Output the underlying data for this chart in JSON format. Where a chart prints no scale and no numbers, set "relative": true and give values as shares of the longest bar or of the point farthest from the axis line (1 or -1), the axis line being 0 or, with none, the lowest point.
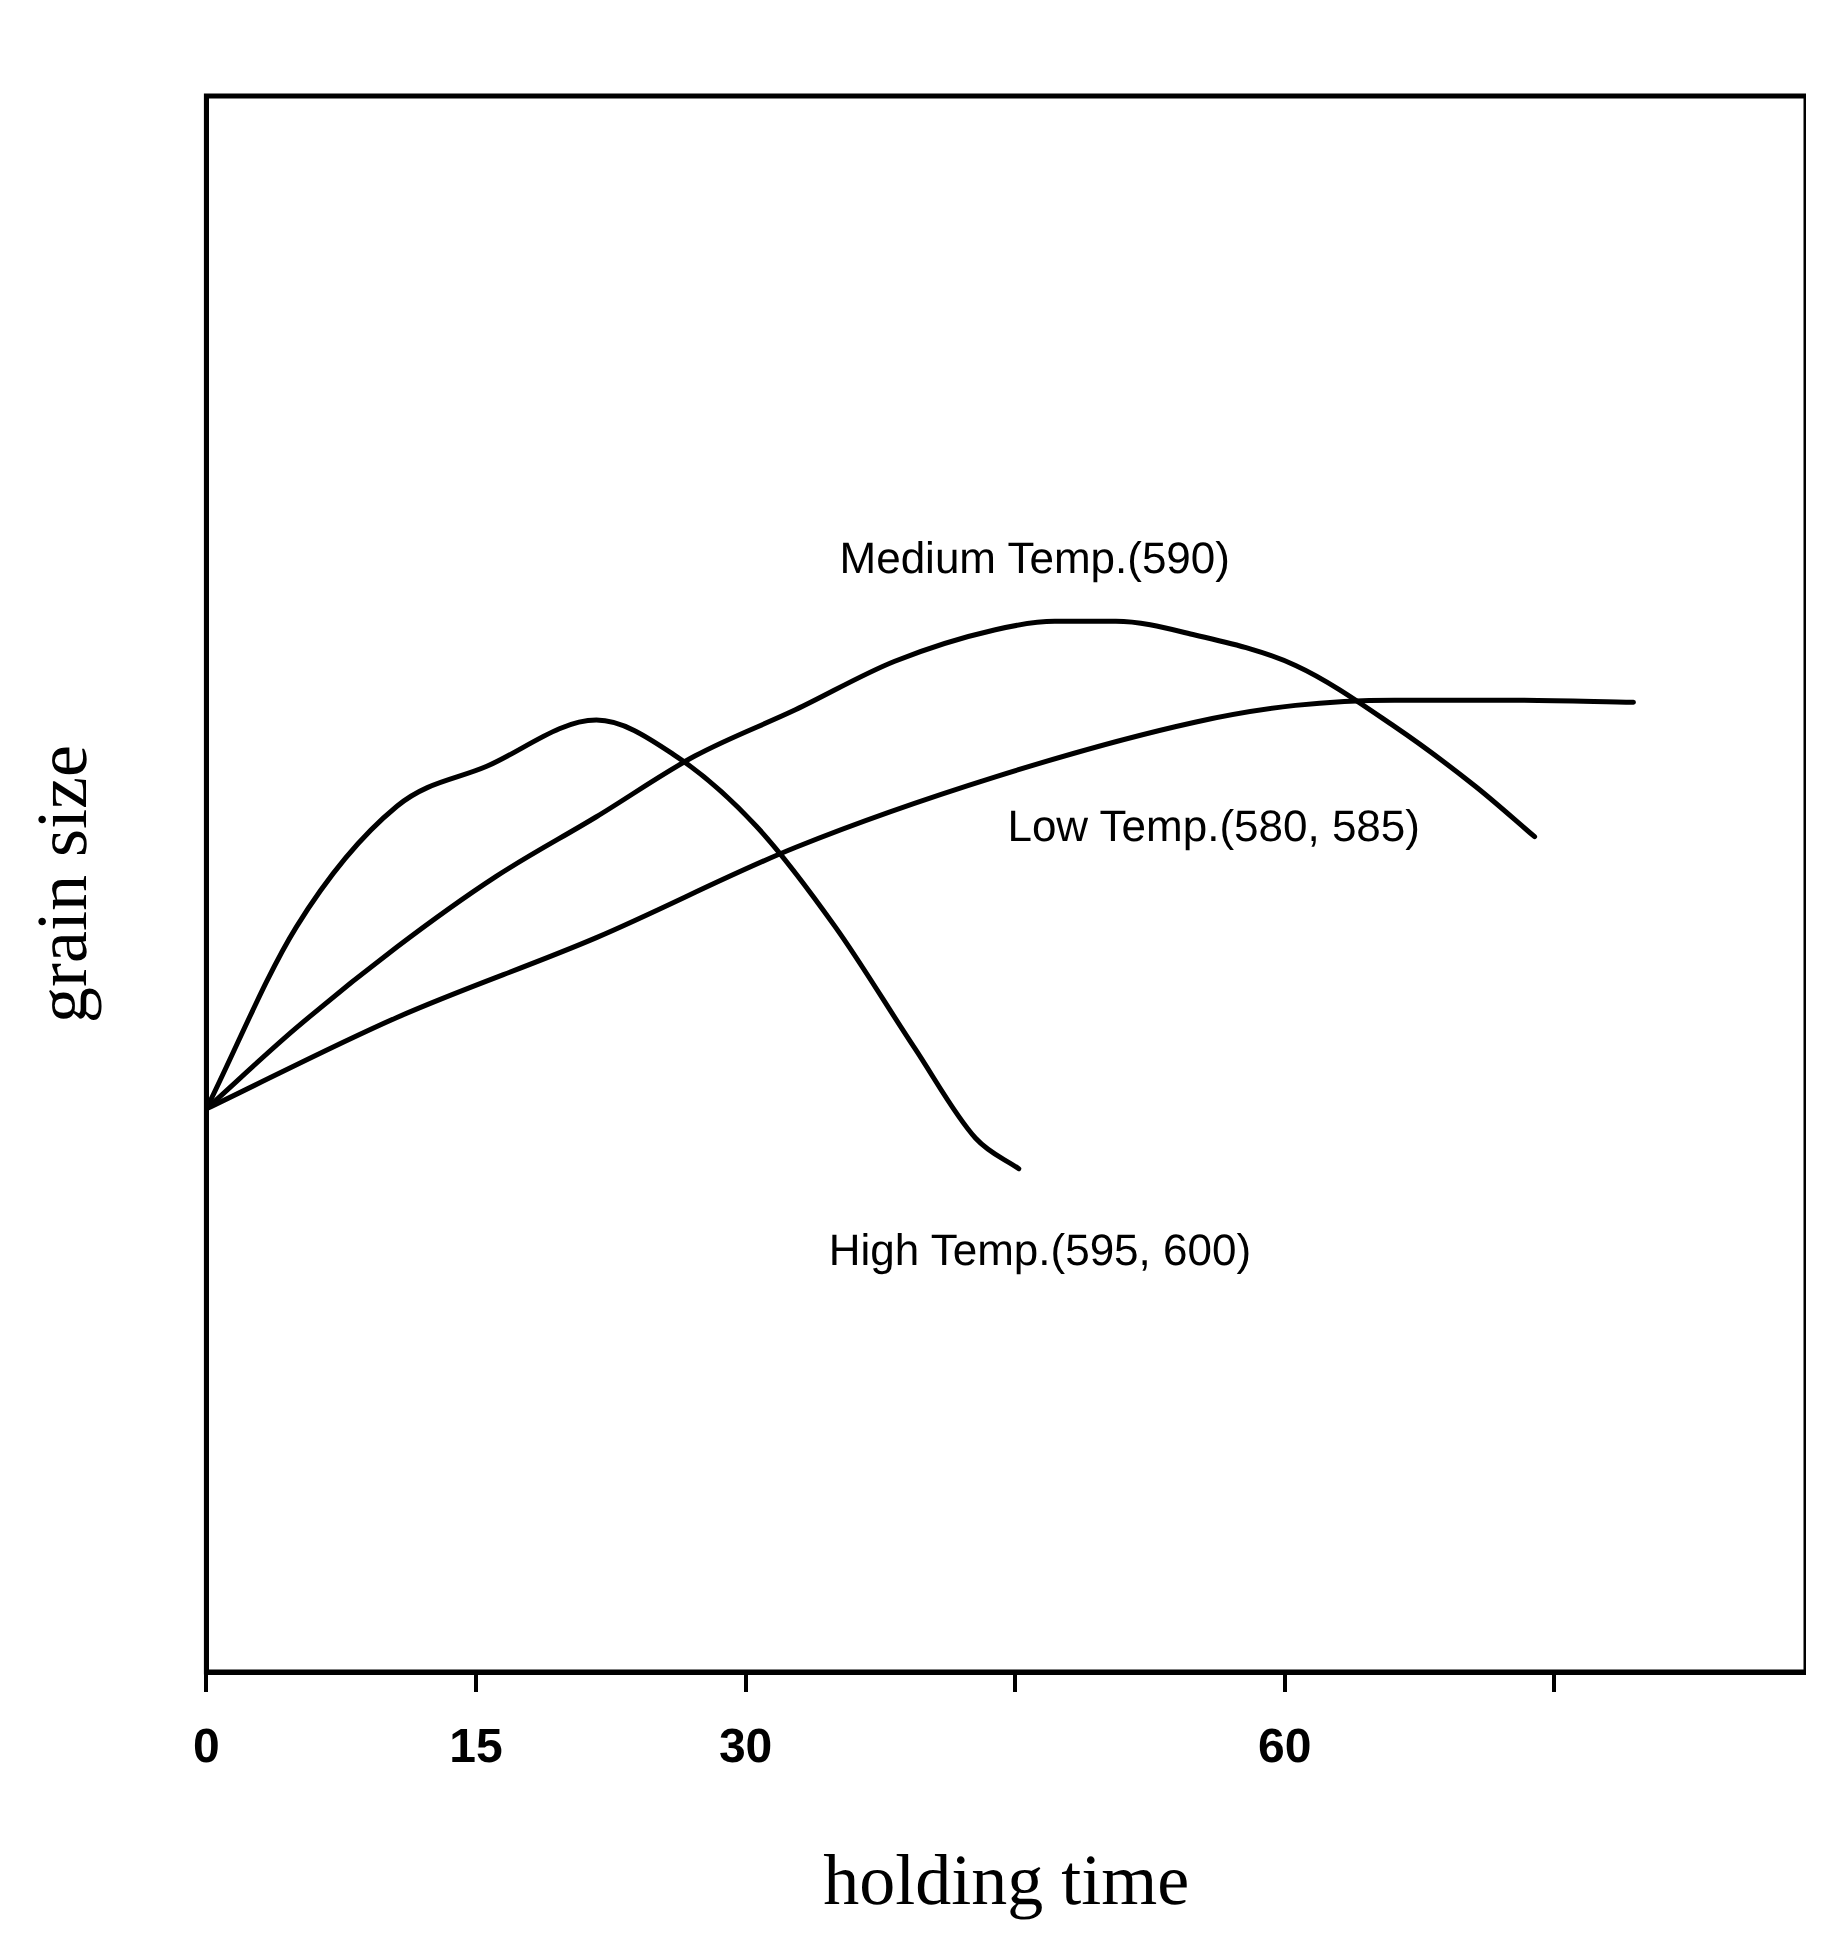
{
  "chart_data": {
    "type": "line",
    "xlabel": "holding time",
    "ylabel": "grain size",
    "relative": true,
    "xlim": [
      0,
      89
    ],
    "xticks": [
      0,
      15,
      30,
      {
        "value": 45,
        "label": null
      },
      60,
      {
        "value": 75,
        "label": null
      }
    ],
    "grid": false,
    "legend": false,
    "marker": "none",
    "line_style": "solid",
    "series": [
      {
        "name": "Medium Temp.(590)",
        "color": "#000000",
        "x": [
          0,
          5,
          10.6,
          16.1,
          21.7,
          27.2,
          32.8,
          38.3,
          43.9,
          47.2,
          50.6,
          55,
          60.6,
          66.1,
          70.6,
          73.9
        ],
        "values": [
          0.536,
          0.613,
          0.69,
          0.757,
          0.814,
          0.872,
          0.916,
          0.962,
          0.992,
          1,
          1,
          0.987,
          0.958,
          0.9,
          0.843,
          0.795
        ]
      },
      {
        "name": "Low Temp.(580, 585)",
        "color": "#000000",
        "x": [
          0,
          10.6,
          21.7,
          32.8,
          43.9,
          55,
          60.6,
          66.1,
          72.8,
          79.4
        ],
        "values": [
          0.536,
          0.623,
          0.699,
          0.785,
          0.852,
          0.904,
          0.92,
          0.925,
          0.925,
          0.923
        ]
      },
      {
        "name": "High Temp.(595, 600)",
        "color": "#000000",
        "x": [
          0,
          5,
          10.6,
          15.6,
          21.7,
          26.1,
          30.6,
          35,
          39.4,
          42.8,
          45.2
        ],
        "values": [
          0.536,
          0.709,
          0.824,
          0.862,
          0.906,
          0.872,
          0.805,
          0.709,
          0.594,
          0.508,
          0.479
        ]
      }
    ]
  }
}
